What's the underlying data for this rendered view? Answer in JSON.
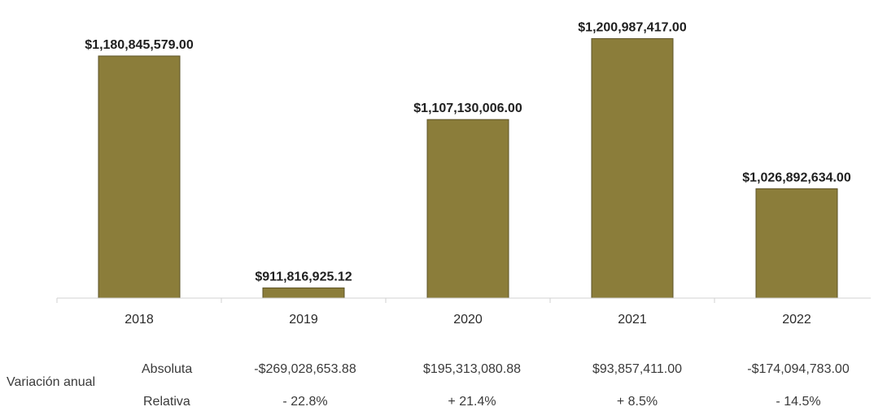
{
  "chart_data": {
    "type": "bar",
    "categories": [
      "2018",
      "2019",
      "2020",
      "2021",
      "2022"
    ],
    "values": [
      1180845579.0,
      911816925.12,
      1107130006.0,
      1200987417.0,
      1026892634.0
    ],
    "data_labels": [
      "$1,180,845,579.00",
      "$911,816,925.12",
      "$1,107,130,006.00",
      "$1,200,987,417.00",
      "$1,026,892,634.00"
    ],
    "title": "",
    "xlabel": "",
    "ylabel": "",
    "ylim": [
      900000000,
      1210000000
    ],
    "grid": false,
    "bar_color": "#8b7d3a"
  },
  "variation": {
    "title": "Variación anual",
    "absolute_label": "Absoluta",
    "relative_label": "Relativa",
    "absolute": [
      "-$269,028,653.88",
      "$195,313,080.88",
      "$93,857,411.00",
      "-$174,094,783.00"
    ],
    "relative": [
      "- 22.8%",
      "+ 21.4%",
      "+ 8.5%",
      "- 14.5%"
    ]
  }
}
